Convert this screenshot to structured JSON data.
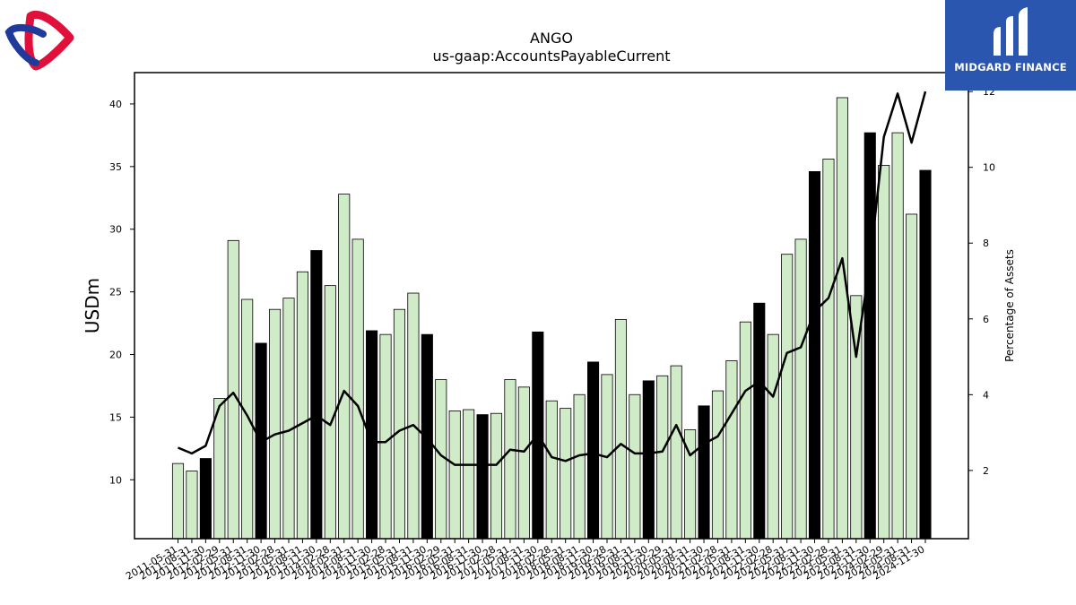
{
  "brand": {
    "name": "MIDGARD FINANCE",
    "colors": {
      "panel": "#2a56b0",
      "logo_red": "#e0103a",
      "logo_blue": "#1f3a9a"
    }
  },
  "chart_data": {
    "type": "bar",
    "title": "ANGO",
    "subtitle": "us-gaap:AccountsPayableCurrent",
    "ylabel": "USDm",
    "y2label": "Percentage of Assets",
    "ylim": [
      5.3,
      42.5
    ],
    "y2lim": [
      0.2,
      12.5
    ],
    "yticks": [
      10,
      15,
      20,
      25,
      30,
      35,
      40
    ],
    "y2ticks": [
      2,
      4,
      6,
      8,
      10,
      12
    ],
    "grid": false,
    "colors": {
      "bar_light": "#d0ebc8",
      "bar_dark": "#000000",
      "line": "#000000"
    },
    "categories": [
      "2011-05-31",
      "2011-08-31",
      "2011-11-30",
      "2012-02-29",
      "2012-05-31",
      "2012-08-31",
      "2012-11-30",
      "2013-02-28",
      "2013-05-31",
      "2013-08-31",
      "2013-11-30",
      "2014-02-28",
      "2014-05-31",
      "2014-08-31",
      "2014-11-30",
      "2015-02-28",
      "2015-05-31",
      "2015-08-31",
      "2015-11-30",
      "2016-02-29",
      "2016-05-31",
      "2016-08-31",
      "2016-11-30",
      "2017-02-28",
      "2017-05-31",
      "2017-08-31",
      "2017-11-30",
      "2018-02-28",
      "2018-05-31",
      "2018-08-31",
      "2018-11-30",
      "2019-02-28",
      "2019-05-31",
      "2019-08-31",
      "2019-11-30",
      "2020-02-29",
      "2020-05-31",
      "2020-08-31",
      "2020-11-30",
      "2021-02-28",
      "2021-05-31",
      "2021-08-31",
      "2021-11-30",
      "2022-02-28",
      "2022-05-31",
      "2022-08-31",
      "2022-11-30",
      "2023-02-28",
      "2023-05-31",
      "2023-08-31",
      "2023-11-30",
      "2024-02-29",
      "2024-05-31",
      "2024-08-31",
      "2024-11-30"
    ],
    "series": [
      {
        "type": "bar",
        "values": [
          11.3,
          10.7,
          11.7,
          16.5,
          29.1,
          24.4,
          20.9,
          23.6,
          24.5,
          26.6,
          28.3,
          25.5,
          32.8,
          29.2,
          21.9,
          21.6,
          23.6,
          24.9,
          21.6,
          18.0,
          15.5,
          15.6,
          15.2,
          15.3,
          18.0,
          17.4,
          21.8,
          16.3,
          15.7,
          16.8,
          19.4,
          18.4,
          22.8,
          16.8,
          17.9,
          18.3,
          19.1,
          14.0,
          15.9,
          17.1,
          19.5,
          22.6,
          24.1,
          21.6,
          28.0,
          29.2,
          34.6,
          35.6,
          40.5,
          24.7,
          37.7,
          35.1,
          37.7,
          31.2,
          34.7
        ],
        "dark": [
          false,
          false,
          true,
          false,
          false,
          false,
          true,
          false,
          false,
          false,
          true,
          false,
          false,
          false,
          true,
          false,
          false,
          false,
          true,
          false,
          false,
          false,
          true,
          false,
          false,
          false,
          true,
          false,
          false,
          false,
          true,
          false,
          false,
          false,
          true,
          false,
          false,
          false,
          true,
          false,
          false,
          false,
          true,
          false,
          false,
          false,
          true,
          false,
          false,
          false,
          true,
          false,
          false,
          false,
          true
        ]
      },
      {
        "type": "line",
        "axis": "right",
        "values": [
          2.6,
          2.45,
          2.65,
          3.7,
          4.05,
          3.45,
          2.75,
          2.95,
          3.05,
          3.25,
          3.45,
          3.2,
          4.1,
          3.7,
          2.75,
          2.75,
          3.05,
          3.2,
          2.85,
          2.4,
          2.15,
          2.15,
          2.15,
          2.15,
          2.55,
          2.5,
          2.95,
          2.35,
          2.25,
          2.4,
          2.45,
          2.35,
          2.7,
          2.45,
          2.45,
          2.5,
          3.2,
          2.4,
          2.7,
          2.9,
          3.5,
          4.1,
          4.35,
          3.95,
          5.1,
          5.25,
          6.2,
          6.55,
          7.6,
          5.0,
          7.5,
          10.8,
          11.95,
          10.65,
          12.0
        ]
      }
    ]
  }
}
